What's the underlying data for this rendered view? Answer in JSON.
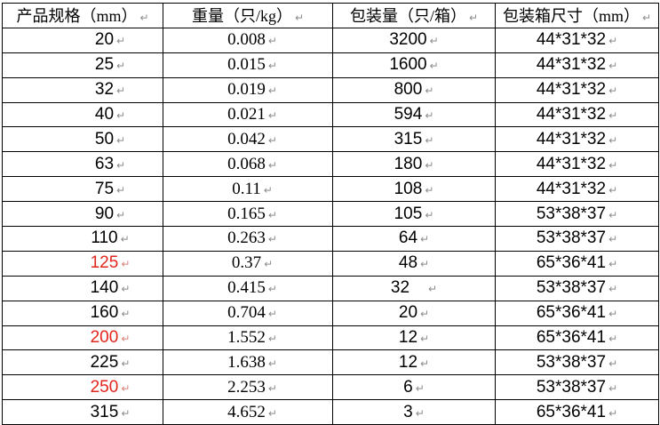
{
  "table": {
    "para_mark": "↵",
    "colors": {
      "text": "#000000",
      "red_text": "#e4251b",
      "border": "#000000",
      "mark": "#8c8c8c"
    },
    "headers": [
      {
        "label": "产品规格（mm）"
      },
      {
        "label": "重量（只/kg）"
      },
      {
        "label": "包装量（只/箱）"
      },
      {
        "label": "包装箱尺寸（mm）"
      }
    ],
    "rows": [
      {
        "spec": "20",
        "weight": "0.008",
        "qty": "3200",
        "box": "44*31*32",
        "red": false,
        "qty_gap": false
      },
      {
        "spec": "25",
        "weight": "0.015",
        "qty": "1600",
        "box": "44*31*32",
        "red": false,
        "qty_gap": false
      },
      {
        "spec": "32",
        "weight": "0.019",
        "qty": "800",
        "box": "44*31*32",
        "red": false,
        "qty_gap": false
      },
      {
        "spec": "40",
        "weight": "0.021",
        "qty": "594",
        "box": "44*31*32",
        "red": false,
        "qty_gap": false
      },
      {
        "spec": "50",
        "weight": "0.042",
        "qty": "315",
        "box": "44*31*32",
        "red": false,
        "qty_gap": false
      },
      {
        "spec": "63",
        "weight": "0.068",
        "qty": "180",
        "box": "44*31*32",
        "red": false,
        "qty_gap": false
      },
      {
        "spec": "75",
        "weight": "0.11",
        "qty": "108",
        "box": "44*31*32",
        "red": false,
        "qty_gap": false
      },
      {
        "spec": "90",
        "weight": "0.165",
        "qty": "105",
        "box": "53*38*37",
        "red": false,
        "qty_gap": false
      },
      {
        "spec": "110",
        "weight": "0.263",
        "qty": "64",
        "box": "53*38*37",
        "red": false,
        "qty_gap": false
      },
      {
        "spec": "125",
        "weight": "0.37",
        "qty": "48",
        "box": "65*36*41",
        "red": true,
        "qty_gap": false
      },
      {
        "spec": "140",
        "weight": "0.415",
        "qty": "32",
        "box": "53*38*37",
        "red": false,
        "qty_gap": true
      },
      {
        "spec": "160",
        "weight": "0.704",
        "qty": "20",
        "box": "65*36*41",
        "red": false,
        "qty_gap": false
      },
      {
        "spec": "200",
        "weight": "1.552",
        "qty": "12",
        "box": "65*36*41",
        "red": true,
        "qty_gap": false
      },
      {
        "spec": "225",
        "weight": "1.638",
        "qty": "12",
        "box": "53*38*37",
        "red": false,
        "qty_gap": false
      },
      {
        "spec": "250",
        "weight": "2.253",
        "qty": "6",
        "box": "53*38*37",
        "red": true,
        "qty_gap": false
      },
      {
        "spec": "315",
        "weight": "4.652",
        "qty": "3",
        "box": "65*36*41",
        "red": false,
        "qty_gap": false
      }
    ]
  }
}
